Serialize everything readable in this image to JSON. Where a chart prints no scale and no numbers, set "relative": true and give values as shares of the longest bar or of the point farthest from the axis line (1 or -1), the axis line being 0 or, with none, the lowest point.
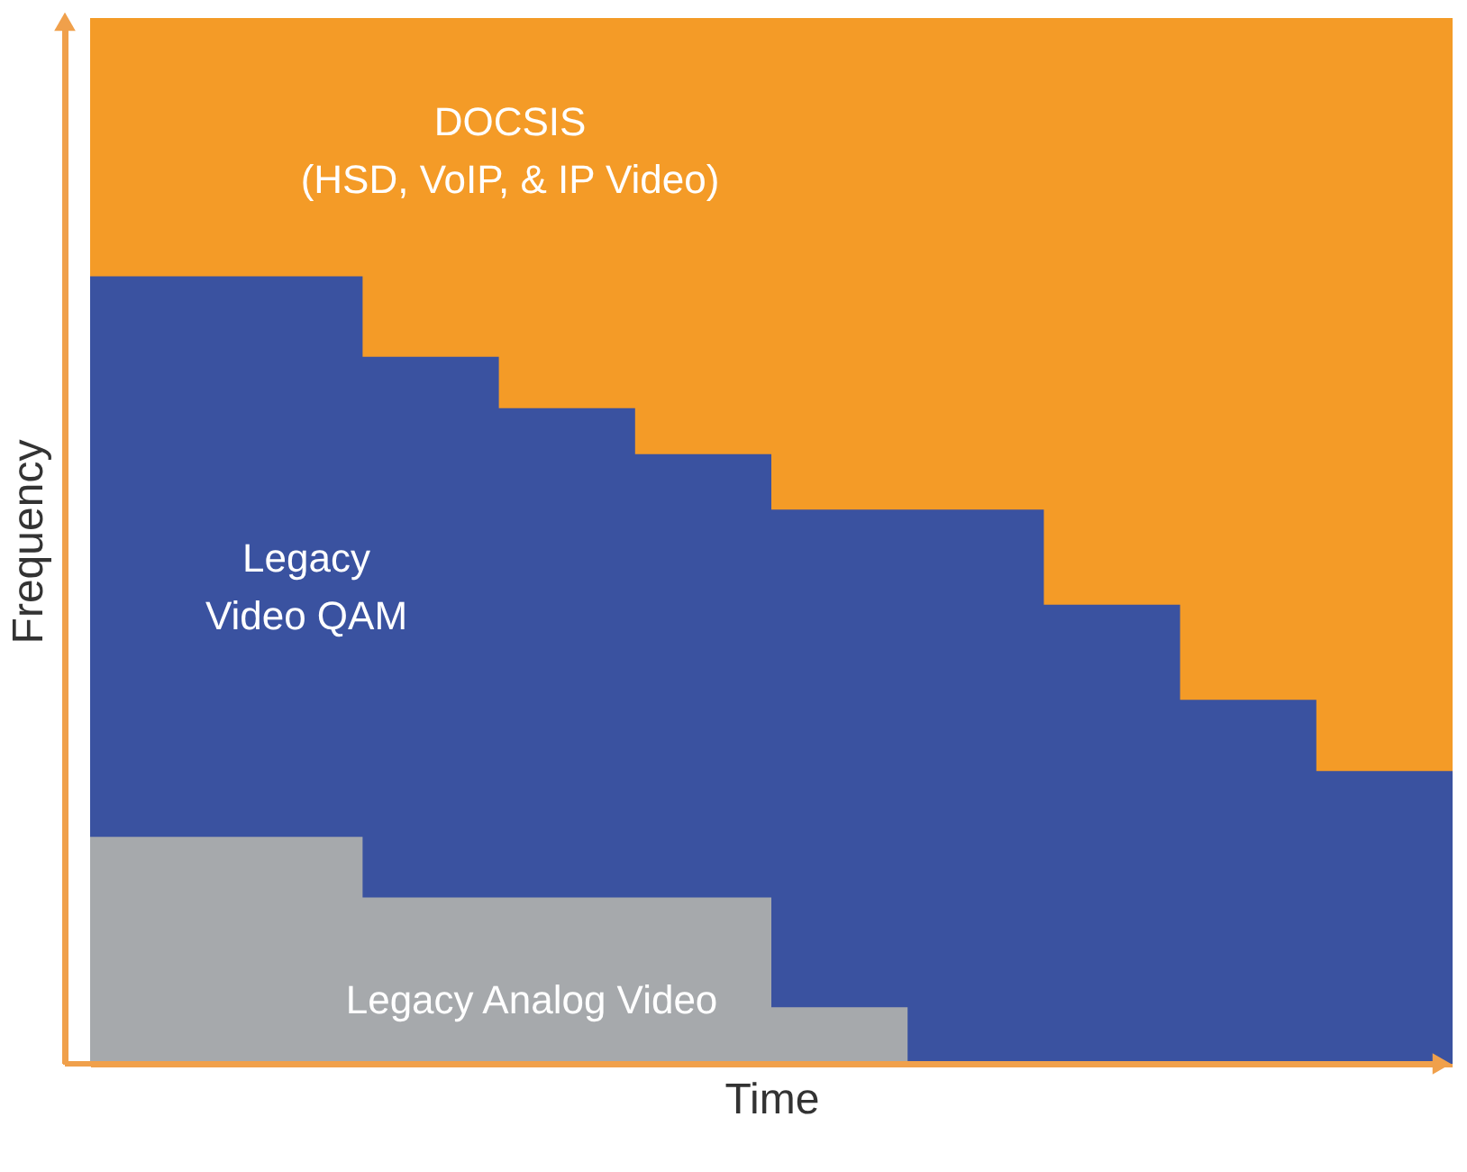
{
  "chart_data": {
    "type": "area",
    "relative": true,
    "xlabel": "Time",
    "ylabel": "Frequency",
    "categories": [
      null,
      null,
      null,
      null,
      null,
      null,
      null,
      null,
      null,
      null,
      null
    ],
    "series": [
      {
        "name": "Legacy Analog Video",
        "color": "#a6a9ac",
        "values": [
          0.217,
          0.217,
          0.159,
          0.159,
          0.159,
          0.054,
          0,
          0,
          0,
          0,
          0
        ]
      },
      {
        "name": "Legacy\nVideo QAM",
        "color": "#3a52a0",
        "values": [
          0.753,
          0.753,
          0.676,
          0.627,
          0.583,
          0.53,
          0.53,
          0.439,
          0.348,
          0.28,
          0.28
        ]
      },
      {
        "name": "DOCSIS\n(HSD, VoIP, & IP Video)",
        "color": "#f49b27",
        "values": [
          1,
          1,
          1,
          1,
          1,
          1,
          1,
          1,
          1,
          1,
          1
        ]
      }
    ]
  }
}
